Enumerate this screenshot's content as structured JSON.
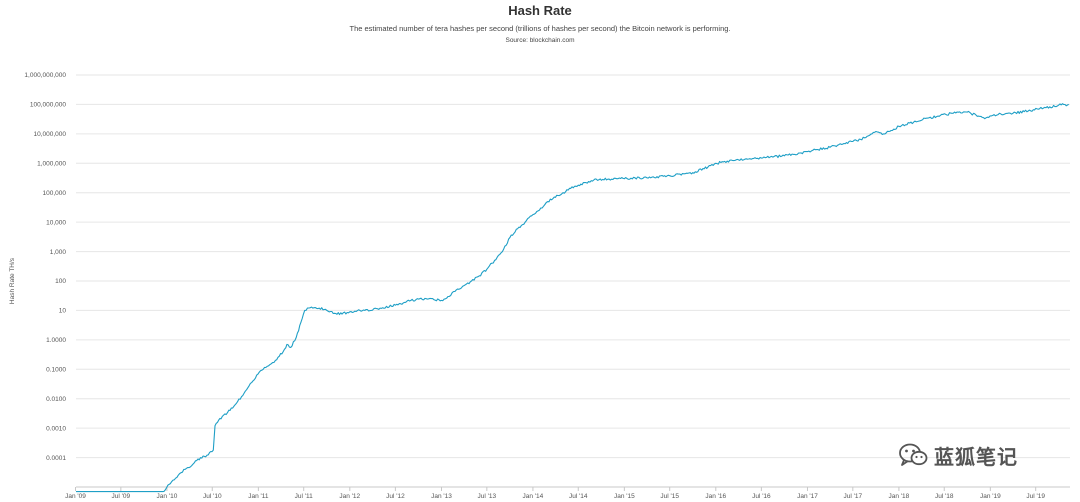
{
  "chart_data": {
    "type": "line",
    "title": "Hash Rate",
    "subtitle": "The estimated number of tera hashes per second (trillions of hashes per second) the Bitcoin network is performing.",
    "source": "Source: blockchain.com",
    "ylabel": "Hash Rate TH/s",
    "yscale": "log",
    "xlim": [
      "2009-01-03",
      "2019-11-15"
    ],
    "ylim": [
      1e-05,
      1000000000
    ],
    "yticks": [
      {
        "value": 1000000000,
        "label": "1,000,000,000"
      },
      {
        "value": 100000000,
        "label": "100,000,000"
      },
      {
        "value": 10000000,
        "label": "10,000,000"
      },
      {
        "value": 1000000,
        "label": "1,000,000"
      },
      {
        "value": 100000,
        "label": "100,000"
      },
      {
        "value": 10000,
        "label": "10,000"
      },
      {
        "value": 1000,
        "label": "1,000"
      },
      {
        "value": 100,
        "label": "100"
      },
      {
        "value": 10,
        "label": "10"
      },
      {
        "value": 1,
        "label": "1.0000"
      },
      {
        "value": 0.1,
        "label": "0.1000"
      },
      {
        "value": 0.01,
        "label": "0.0100"
      },
      {
        "value": 0.001,
        "label": "0.0010"
      },
      {
        "value": 0.0001,
        "label": "0.0001"
      }
    ],
    "xticks": [
      {
        "date": "2009-01-01",
        "label": "Jan '09"
      },
      {
        "date": "2009-07-01",
        "label": "Jul '09"
      },
      {
        "date": "2010-01-01",
        "label": "Jan '10"
      },
      {
        "date": "2010-07-01",
        "label": "Jul '10"
      },
      {
        "date": "2011-01-01",
        "label": "Jan '11"
      },
      {
        "date": "2011-07-01",
        "label": "Jul '11"
      },
      {
        "date": "2012-01-01",
        "label": "Jan '12"
      },
      {
        "date": "2012-07-01",
        "label": "Jul '12"
      },
      {
        "date": "2013-01-01",
        "label": "Jan '13"
      },
      {
        "date": "2013-07-01",
        "label": "Jul '13"
      },
      {
        "date": "2014-01-01",
        "label": "Jan '14"
      },
      {
        "date": "2014-07-01",
        "label": "Jul '14"
      },
      {
        "date": "2015-01-01",
        "label": "Jan '15"
      },
      {
        "date": "2015-07-01",
        "label": "Jul '15"
      },
      {
        "date": "2016-01-01",
        "label": "Jan '16"
      },
      {
        "date": "2016-07-01",
        "label": "Jul '16"
      },
      {
        "date": "2017-01-01",
        "label": "Jan '17"
      },
      {
        "date": "2017-07-01",
        "label": "Jul '17"
      },
      {
        "date": "2018-01-01",
        "label": "Jan '18"
      },
      {
        "date": "2018-07-01",
        "label": "Jul '18"
      },
      {
        "date": "2019-01-01",
        "label": "Jan '19"
      },
      {
        "date": "2019-07-01",
        "label": "Jul '19"
      }
    ],
    "grid": true,
    "series": [
      {
        "color": "#1f9fc6",
        "points": [
          [
            "2009-01-03",
            7e-06
          ],
          [
            "2009-07-01",
            7e-06
          ],
          [
            "2009-12-15",
            7e-06
          ],
          [
            "2010-01-15",
            1.3e-05
          ],
          [
            "2010-02-15",
            2.5e-05
          ],
          [
            "2010-03-15",
            4e-05
          ],
          [
            "2010-04-15",
            6e-05
          ],
          [
            "2010-05-15",
            0.0001
          ],
          [
            "2010-06-10",
            0.00012
          ],
          [
            "2010-07-05",
            0.00018
          ],
          [
            "2010-07-12",
            0.0012
          ],
          [
            "2010-08-10",
            0.0025
          ],
          [
            "2010-09-10",
            0.004
          ],
          [
            "2010-10-10",
            0.008
          ],
          [
            "2010-11-10",
            0.018
          ],
          [
            "2010-12-10",
            0.04
          ],
          [
            "2011-01-10",
            0.09
          ],
          [
            "2011-02-10",
            0.13
          ],
          [
            "2011-03-10",
            0.2
          ],
          [
            "2011-04-10",
            0.4
          ],
          [
            "2011-04-25",
            0.7
          ],
          [
            "2011-05-10",
            0.55
          ],
          [
            "2011-06-01",
            1.2
          ],
          [
            "2011-06-20",
            4
          ],
          [
            "2011-07-05",
            10
          ],
          [
            "2011-08-01",
            13
          ],
          [
            "2011-09-01",
            12
          ],
          [
            "2011-10-01",
            10
          ],
          [
            "2011-11-01",
            8
          ],
          [
            "2011-12-01",
            7.5
          ],
          [
            "2012-01-01",
            9
          ],
          [
            "2012-03-01",
            10
          ],
          [
            "2012-05-01",
            12
          ],
          [
            "2012-07-01",
            15
          ],
          [
            "2012-09-01",
            22
          ],
          [
            "2012-11-01",
            25
          ],
          [
            "2013-01-01",
            22
          ],
          [
            "2013-02-01",
            30
          ],
          [
            "2013-03-01",
            50
          ],
          [
            "2013-04-01",
            70
          ],
          [
            "2013-05-01",
            100
          ],
          [
            "2013-06-01",
            150
          ],
          [
            "2013-07-01",
            250
          ],
          [
            "2013-08-01",
            500
          ],
          [
            "2013-09-01",
            1000
          ],
          [
            "2013-10-01",
            3000
          ],
          [
            "2013-11-01",
            6000
          ],
          [
            "2013-12-01",
            10000
          ],
          [
            "2014-01-01",
            18000
          ],
          [
            "2014-02-01",
            30000
          ],
          [
            "2014-03-01",
            50000
          ],
          [
            "2014-04-01",
            70000
          ],
          [
            "2014-05-01",
            100000
          ],
          [
            "2014-06-01",
            140000
          ],
          [
            "2014-07-01",
            180000
          ],
          [
            "2014-08-01",
            220000
          ],
          [
            "2014-09-01",
            270000
          ],
          [
            "2014-11-01",
            290000
          ],
          [
            "2015-01-01",
            300000
          ],
          [
            "2015-04-01",
            320000
          ],
          [
            "2015-07-01",
            380000
          ],
          [
            "2015-10-01",
            480000
          ],
          [
            "2015-12-01",
            750000
          ],
          [
            "2016-01-01",
            1000000
          ],
          [
            "2016-04-01",
            1300000
          ],
          [
            "2016-07-01",
            1500000
          ],
          [
            "2016-10-01",
            1800000
          ],
          [
            "2017-01-01",
            2500000
          ],
          [
            "2017-04-01",
            3500000
          ],
          [
            "2017-07-01",
            5500000
          ],
          [
            "2017-08-01",
            6500000
          ],
          [
            "2017-09-01",
            8500000
          ],
          [
            "2017-10-01",
            12000000
          ],
          [
            "2017-11-01",
            10000000
          ],
          [
            "2017-12-01",
            13000000
          ],
          [
            "2018-01-01",
            18000000
          ],
          [
            "2018-03-01",
            25000000
          ],
          [
            "2018-05-01",
            35000000
          ],
          [
            "2018-08-01",
            50000000
          ],
          [
            "2018-10-01",
            55000000
          ],
          [
            "2018-11-15",
            40000000
          ],
          [
            "2018-12-15",
            35000000
          ],
          [
            "2019-02-01",
            45000000
          ],
          [
            "2019-04-01",
            50000000
          ],
          [
            "2019-06-01",
            60000000
          ],
          [
            "2019-08-01",
            75000000
          ],
          [
            "2019-10-01",
            95000000
          ],
          [
            "2019-11-10",
            100000000
          ]
        ]
      }
    ]
  },
  "watermark": {
    "text": "蓝狐笔记",
    "icon": "wechat-icon"
  }
}
